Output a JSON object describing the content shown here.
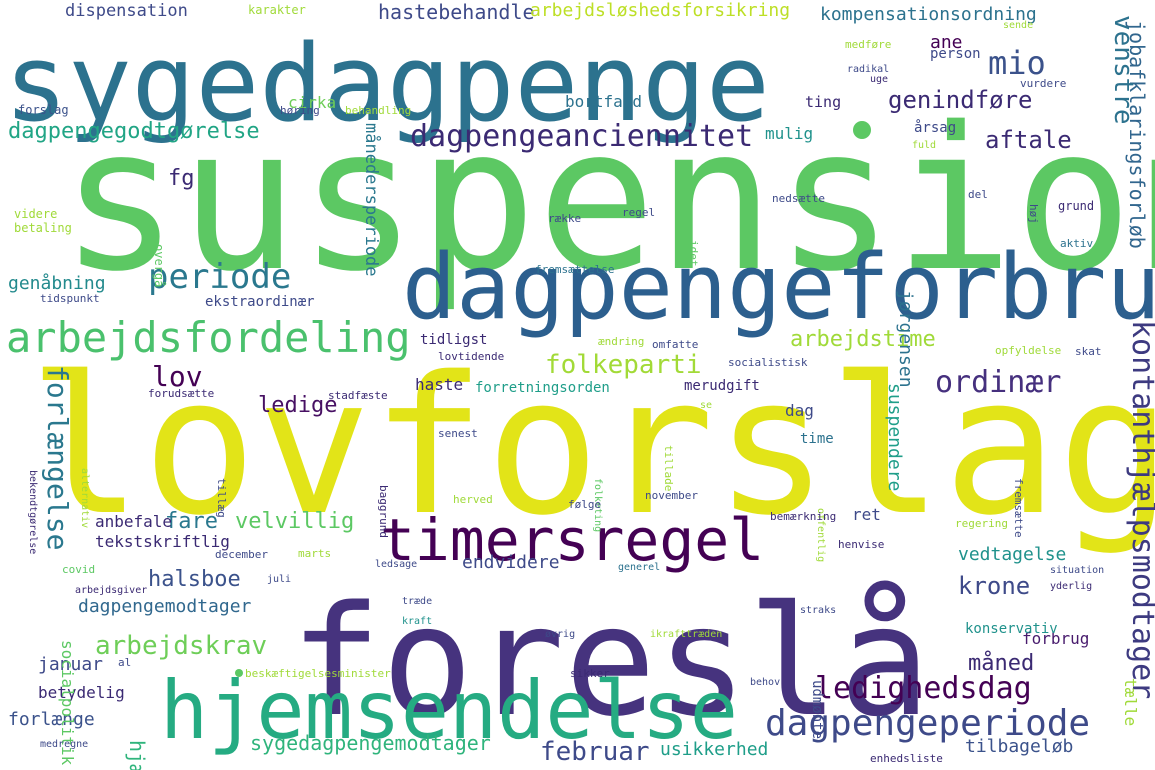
{
  "wordcloud": {
    "background": "#ffffff",
    "palette": [
      "#440154",
      "#46327e",
      "#365c8d",
      "#277f8e",
      "#1fa187",
      "#4ac16d",
      "#a0da39",
      "#fde725"
    ],
    "words": [
      {
        "text": "suspension",
        "color": "#5cc863"
      },
      {
        "text": "lovforslag",
        "color": "#e2e418"
      },
      {
        "text": "sygedagpenge",
        "color": "#2c728e"
      },
      {
        "text": "foreslå",
        "color": "#46337e"
      },
      {
        "text": "dagpengeforbrug",
        "color": "#2c5f8e"
      },
      {
        "text": "hjemsendelse",
        "color": "#25ab82"
      },
      {
        "text": "timersregel",
        "color": "#440154"
      },
      {
        "text": "arbejdsfordeling",
        "color": "#4ac16d"
      },
      {
        "text": "dagpengeanciennitet",
        "color": "#3b2a73"
      },
      {
        "text": "dagpengeperiode",
        "color": "#3e4a89"
      },
      {
        "text": "kontanthjælpsmodtager",
        "color": "#3d3a80"
      },
      {
        "text": "periode",
        "color": "#2a788e"
      },
      {
        "text": "mio",
        "color": "#3b528b"
      },
      {
        "text": "ordinær",
        "color": "#46307e"
      },
      {
        "text": "forlængelse",
        "color": "#2a788e"
      },
      {
        "text": "ledighedsdag",
        "color": "#440154"
      },
      {
        "text": "dagpengegodtgørelse",
        "color": "#21a585"
      },
      {
        "text": "arbejdskrav",
        "color": "#6ece58"
      },
      {
        "text": "halsboe",
        "color": "#3b528b"
      },
      {
        "text": "folkeparti",
        "color": "#a2da37"
      },
      {
        "text": "krone",
        "color": "#3e4a89"
      },
      {
        "text": "måned",
        "color": "#3b2a73"
      },
      {
        "text": "februar",
        "color": "#3e4a89"
      },
      {
        "text": "ledige",
        "color": "#471063"
      },
      {
        "text": "lov",
        "color": "#440154"
      },
      {
        "text": "fare",
        "color": "#2a788e"
      },
      {
        "text": "velvillig",
        "color": "#5cc863"
      },
      {
        "text": "aftale",
        "color": "#3b2a73"
      },
      {
        "text": "arbejdstime",
        "color": "#a0da39"
      },
      {
        "text": "genindføre",
        "color": "#3b2a73"
      },
      {
        "text": "jobafklaringsforløb",
        "color": "#31668e"
      },
      {
        "text": "venstre",
        "color": "#2c728e"
      },
      {
        "text": "sygedagpengemodtager",
        "color": "#2fb47c"
      },
      {
        "text": "dagpengemodtager",
        "color": "#31688e"
      },
      {
        "text": "usikkerhed",
        "color": "#1f9e89"
      },
      {
        "text": "tilbageløb",
        "color": "#3b528b"
      },
      {
        "text": "hjælp",
        "color": "#2fb47c"
      },
      {
        "text": "endvidere",
        "color": "#3e4a89"
      },
      {
        "text": "vedtagelse",
        "color": "#20928c"
      },
      {
        "text": "forbrug",
        "color": "#481b6d"
      },
      {
        "text": "suspendere",
        "color": "#1f9e89"
      },
      {
        "text": "månedersperiode",
        "color": "#2a788e"
      },
      {
        "text": "jørgensen",
        "color": "#2c728e"
      },
      {
        "text": "hastebehandle",
        "color": "#3e4a89"
      },
      {
        "text": "kompensationsordning",
        "color": "#2c728e"
      },
      {
        "text": "arbejdsløshedsforsikring",
        "color": "#bddf26"
      },
      {
        "text": "dispensation",
        "color": "#3e4a89"
      },
      {
        "text": "ane",
        "color": "#440154"
      },
      {
        "text": "fg",
        "color": "#3b2a73"
      },
      {
        "text": "genåbning",
        "color": "#238a8d"
      },
      {
        "text": "forlænge",
        "color": "#3b528b"
      },
      {
        "text": "januar",
        "color": "#3e4a89"
      },
      {
        "text": "betydelig",
        "color": "#3b2a73"
      },
      {
        "text": "tekstskriftlig",
        "color": "#3b2a73"
      },
      {
        "text": "anbefale",
        "color": "#3b2a73"
      },
      {
        "text": "socialpolitik",
        "color": "#5cc863"
      },
      {
        "text": "ekstraordinær",
        "color": "#3e4a89"
      },
      {
        "text": "tidligst",
        "color": "#3b2a73"
      },
      {
        "text": "haste",
        "color": "#3b2a73"
      },
      {
        "text": "mulig",
        "color": "#20928c"
      },
      {
        "text": "bortfald",
        "color": "#2c728e"
      },
      {
        "text": "cirka",
        "color": "#6ece58"
      },
      {
        "text": "ting",
        "color": "#3b2a73"
      },
      {
        "text": "tælle",
        "color": "#a0da39"
      },
      {
        "text": "konservativ",
        "color": "#20928c"
      },
      {
        "text": "udmønte",
        "color": "#3e4a89"
      },
      {
        "text": "dag",
        "color": "#3e4a89"
      },
      {
        "text": "ret",
        "color": "#3e4a89"
      },
      {
        "text": "merudgift",
        "color": "#3b2a73"
      },
      {
        "text": "forretningsorden",
        "color": "#1f9e89"
      },
      {
        "text": "time",
        "color": "#2c728e"
      },
      {
        "text": "årsag",
        "color": "#3e4a89"
      },
      {
        "text": "person",
        "color": "#3e4a89"
      },
      {
        "text": "karakter",
        "color": "#a0da39"
      },
      {
        "text": "sende",
        "color": "#a0da39"
      },
      {
        "text": "medføre",
        "color": "#a0da39"
      },
      {
        "text": "radikal",
        "color": "#3e4a89"
      },
      {
        "text": "uge",
        "color": "#3b2a73"
      },
      {
        "text": "vurdere",
        "color": "#3e4a89"
      },
      {
        "text": "fuld",
        "color": "#a0da39"
      },
      {
        "text": "forslag",
        "color": "#3b528b"
      },
      {
        "text": "høring",
        "color": "#3e4a89"
      },
      {
        "text": "behandling",
        "color": "#a0da39"
      },
      {
        "text": "videre",
        "color": "#a0da39"
      },
      {
        "text": "betaling",
        "color": "#a0da39"
      },
      {
        "text": "overgå",
        "color": "#5cc863"
      },
      {
        "text": "række",
        "color": "#3e4a89"
      },
      {
        "text": "regel",
        "color": "#3e4a89"
      },
      {
        "text": "idet",
        "color": "#5cc863"
      },
      {
        "text": "nedsætte",
        "color": "#3e4a89"
      },
      {
        "text": "del",
        "color": "#3e4a89"
      },
      {
        "text": "høj",
        "color": "#3e4a89"
      },
      {
        "text": "grund",
        "color": "#3b2a73"
      },
      {
        "text": "aktiv",
        "color": "#2c728e"
      },
      {
        "text": "fremsættelse",
        "color": "#2c728e"
      },
      {
        "text": "tidspunkt",
        "color": "#3e4a89"
      },
      {
        "text": "ændring",
        "color": "#a0da39"
      },
      {
        "text": "omfatte",
        "color": "#3e4a89"
      },
      {
        "text": "lovtidende",
        "color": "#3b2a73"
      },
      {
        "text": "socialistisk",
        "color": "#3e4a89"
      },
      {
        "text": "opfyldelse",
        "color": "#a0da39"
      },
      {
        "text": "skat",
        "color": "#3e4a89"
      },
      {
        "text": "forudsætte",
        "color": "#3b2a73"
      },
      {
        "text": "stadfæste",
        "color": "#3b2a73"
      },
      {
        "text": "bekendtgørelse",
        "color": "#3b2a73"
      },
      {
        "text": "alternativ",
        "color": "#a0da39"
      },
      {
        "text": "senest",
        "color": "#3e4a89"
      },
      {
        "text": "tillæg",
        "color": "#3e4a89"
      },
      {
        "text": "baggrund",
        "color": "#3b2a73"
      },
      {
        "text": "folketing",
        "color": "#5cc863"
      },
      {
        "text": "tillade",
        "color": "#a0da39"
      },
      {
        "text": "se",
        "color": "#a0da39"
      },
      {
        "text": "offentlig",
        "color": "#a0da39"
      },
      {
        "text": "fremsætte",
        "color": "#3e4a89"
      },
      {
        "text": "herved",
        "color": "#a0da39"
      },
      {
        "text": "følge",
        "color": "#3e4a89"
      },
      {
        "text": "november",
        "color": "#3e4a89"
      },
      {
        "text": "bemærkning",
        "color": "#3b2a73"
      },
      {
        "text": "regering",
        "color": "#a0da39"
      },
      {
        "text": "henvise",
        "color": "#3b2a73"
      },
      {
        "text": "december",
        "color": "#3e4a89"
      },
      {
        "text": "marts",
        "color": "#a0da39"
      },
      {
        "text": "covid",
        "color": "#5cc863"
      },
      {
        "text": "arbejdsgiver",
        "color": "#3b2a73"
      },
      {
        "text": "juli",
        "color": "#3e4a89"
      },
      {
        "text": "ledsage",
        "color": "#3e4a89"
      },
      {
        "text": "generel",
        "color": "#2c728e"
      },
      {
        "text": "situation",
        "color": "#3e4a89"
      },
      {
        "text": "yderlig",
        "color": "#3b2a73"
      },
      {
        "text": "træde",
        "color": "#3e4a89"
      },
      {
        "text": "kraft",
        "color": "#20928c"
      },
      {
        "text": "straks",
        "color": "#3e4a89"
      },
      {
        "text": "øvrig",
        "color": "#3e4a89"
      },
      {
        "text": "ikrafttræden",
        "color": "#a0da39"
      },
      {
        "text": "beskæftigelsesminister",
        "color": "#a0da39"
      },
      {
        "text": "al",
        "color": "#3e4a89"
      },
      {
        "text": "sikker",
        "color": "#3b2a73"
      },
      {
        "text": "behov",
        "color": "#3e4a89"
      },
      {
        "text": "medregne",
        "color": "#3e4a89"
      },
      {
        "text": "enhedsliste",
        "color": "#3b2a73"
      }
    ]
  }
}
